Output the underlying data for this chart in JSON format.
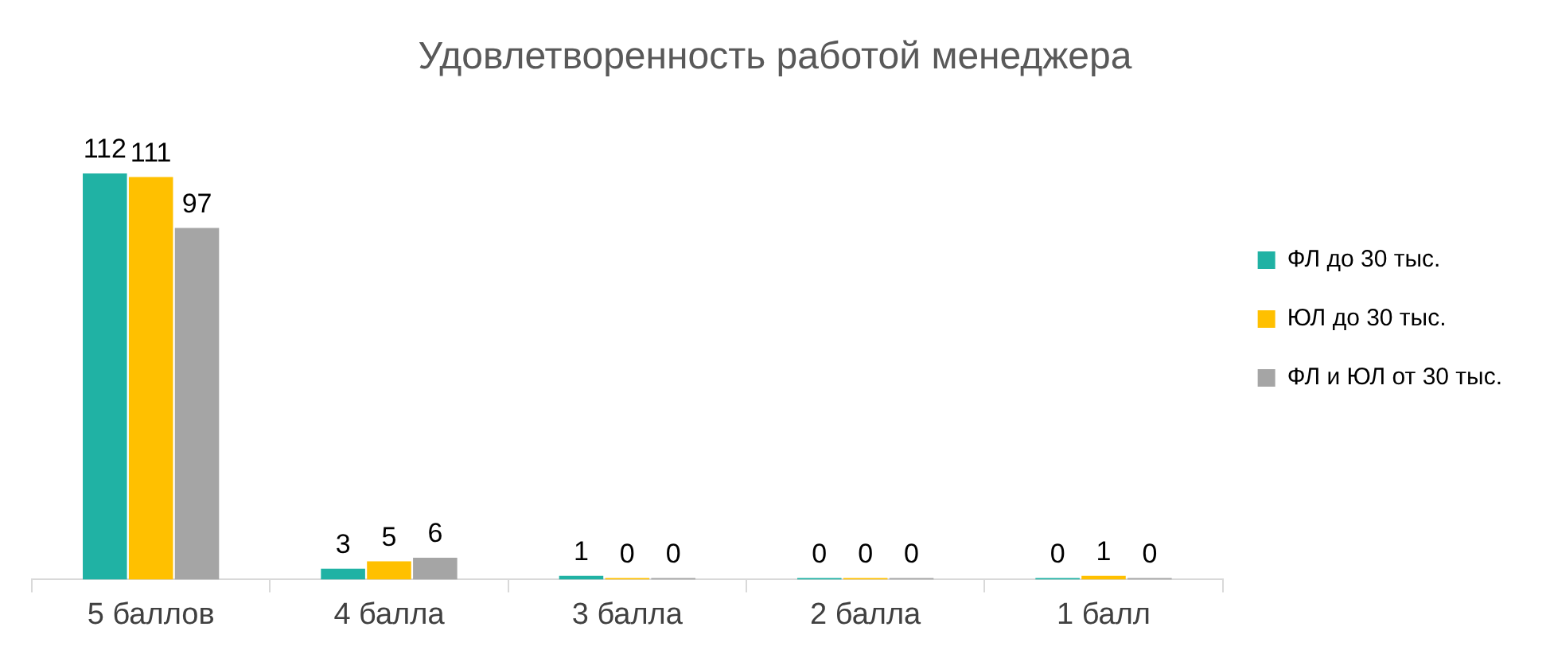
{
  "chart_data": {
    "type": "bar",
    "title": "Удовлетворенность работой менеджера",
    "categories": [
      "5 баллов",
      "4 балла",
      "3 балла",
      "2 балла",
      "1 балл"
    ],
    "series": [
      {
        "name": "ФЛ до 30 тыс.",
        "color": "#20b2a4",
        "values": [
          112,
          3,
          1,
          0,
          0
        ]
      },
      {
        "name": "ЮЛ до 30 тыс.",
        "color": "#ffc000",
        "values": [
          111,
          5,
          0,
          0,
          1
        ]
      },
      {
        "name": "ФЛ и ЮЛ от 30 тыс.",
        "color": "#a5a5a5",
        "values": [
          97,
          6,
          0,
          0,
          0
        ]
      }
    ],
    "data_labels": true,
    "grid": false,
    "legend": "right"
  }
}
